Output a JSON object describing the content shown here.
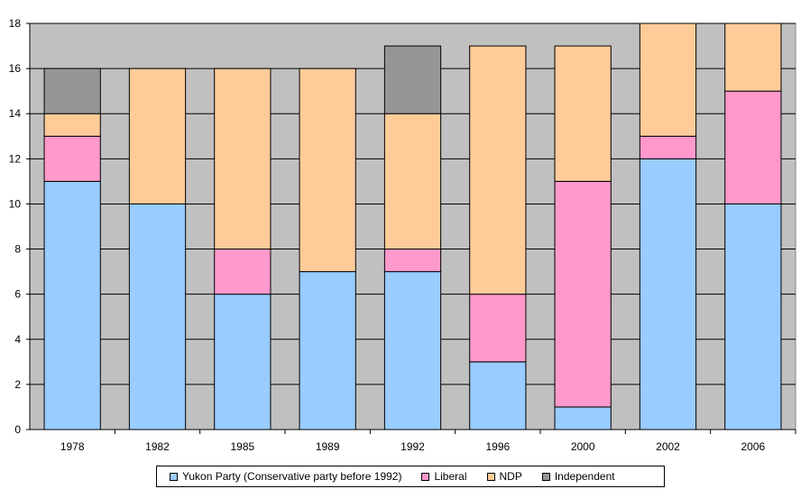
{
  "chart_data": {
    "type": "bar",
    "stacked": true,
    "title": "",
    "xlabel": "",
    "ylabel": "",
    "ylim": [
      0,
      18
    ],
    "yticks": [
      0,
      2,
      4,
      6,
      8,
      10,
      12,
      14,
      16,
      18
    ],
    "grid": true,
    "legend_position": "bottom",
    "categories": [
      "1978",
      "1982",
      "1985",
      "1989",
      "1992",
      "1996",
      "2000",
      "2002",
      "2006"
    ],
    "series": [
      {
        "name": "Yukon Party (Conservative party before 1992)",
        "color": "#99ccff",
        "values": [
          11,
          10,
          6,
          7,
          7,
          3,
          1,
          12,
          10
        ]
      },
      {
        "name": "Liberal",
        "color": "#ff99cc",
        "values": [
          2,
          0,
          2,
          0,
          1,
          3,
          10,
          1,
          5
        ]
      },
      {
        "name": "NDP",
        "color": "#ffcc99",
        "values": [
          1,
          6,
          8,
          9,
          6,
          11,
          6,
          5,
          3
        ]
      },
      {
        "name": "Independent",
        "color": "#969696",
        "values": [
          2,
          0,
          0,
          0,
          3,
          0,
          0,
          0,
          0
        ]
      }
    ],
    "plot_background": "#c0c0c0"
  }
}
